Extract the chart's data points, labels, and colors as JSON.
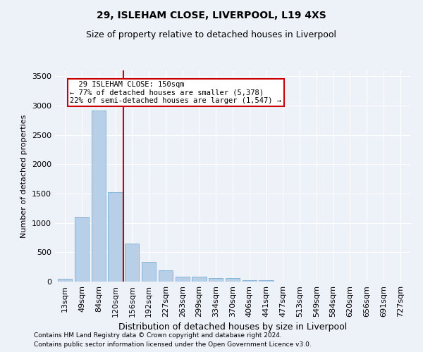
{
  "title1": "29, ISLEHAM CLOSE, LIVERPOOL, L19 4XS",
  "title2": "Size of property relative to detached houses in Liverpool",
  "xlabel": "Distribution of detached houses by size in Liverpool",
  "ylabel": "Number of detached properties",
  "categories": [
    "13sqm",
    "49sqm",
    "84sqm",
    "120sqm",
    "156sqm",
    "192sqm",
    "227sqm",
    "263sqm",
    "299sqm",
    "334sqm",
    "370sqm",
    "406sqm",
    "441sqm",
    "477sqm",
    "513sqm",
    "549sqm",
    "584sqm",
    "620sqm",
    "656sqm",
    "691sqm",
    "727sqm"
  ],
  "values": [
    50,
    1110,
    2920,
    1520,
    650,
    340,
    190,
    90,
    90,
    55,
    55,
    20,
    20,
    5,
    5,
    5,
    5,
    5,
    0,
    0,
    0
  ],
  "bar_color": "#b8cfe8",
  "bar_edge_color": "#7aadd4",
  "vline_color": "#cc0000",
  "vline_x": 3.5,
  "annotation_text": "  29 ISLEHAM CLOSE: 150sqm  \n← 77% of detached houses are smaller (5,378)\n22% of semi-detached houses are larger (1,547) →",
  "annotation_box_color": "#cc0000",
  "annotation_fill": "#ffffff",
  "ylim": [
    0,
    3600
  ],
  "yticks": [
    0,
    500,
    1000,
    1500,
    2000,
    2500,
    3000,
    3500
  ],
  "footnote1": "Contains HM Land Registry data © Crown copyright and database right 2024.",
  "footnote2": "Contains public sector information licensed under the Open Government Licence v3.0.",
  "bg_color": "#edf1f8",
  "grid_color": "#ffffff",
  "title1_fontsize": 10,
  "title2_fontsize": 9,
  "tick_fontsize": 8,
  "ylabel_fontsize": 8,
  "xlabel_fontsize": 9,
  "footnote_fontsize": 6.5,
  "annotation_fontsize": 7.5
}
